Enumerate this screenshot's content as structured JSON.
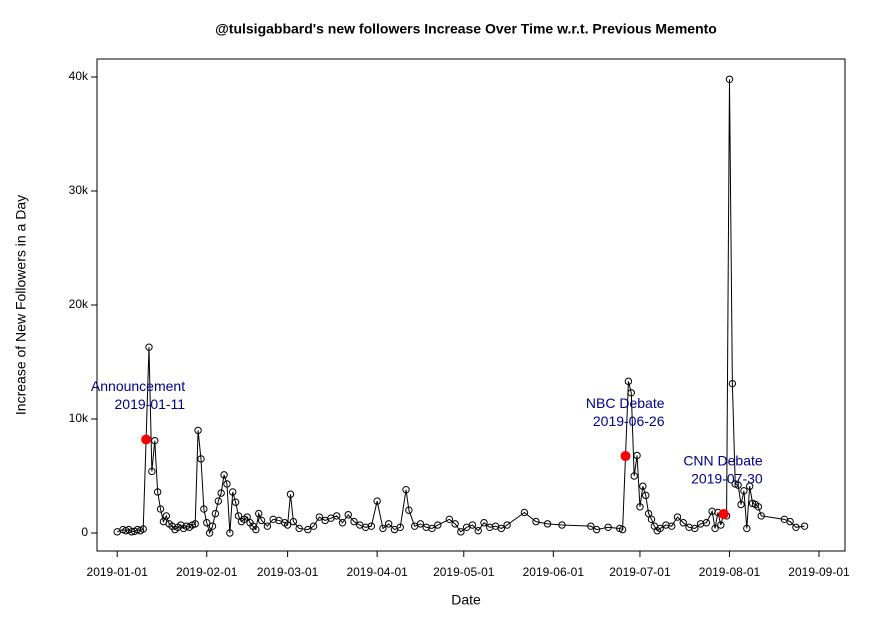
{
  "chart_data": {
    "type": "line",
    "title": "@tulsigabbard's new followers Increase Over Time w.r.t. Previous Memento",
    "xlabel": "Date",
    "ylabel": "Increase of New Followers in a Day",
    "x": [
      "2019-01-01",
      "2019-01-03",
      "2019-01-04",
      "2019-01-05",
      "2019-01-06",
      "2019-01-07",
      "2019-01-08",
      "2019-01-09",
      "2019-01-10",
      "2019-01-11",
      "2019-01-12",
      "2019-01-13",
      "2019-01-14",
      "2019-01-15",
      "2019-01-16",
      "2019-01-17",
      "2019-01-18",
      "2019-01-19",
      "2019-01-20",
      "2019-01-21",
      "2019-01-22",
      "2019-01-23",
      "2019-01-24",
      "2019-01-25",
      "2019-01-26",
      "2019-01-27",
      "2019-01-28",
      "2019-01-29",
      "2019-01-30",
      "2019-01-31",
      "2019-02-01",
      "2019-02-02",
      "2019-02-03",
      "2019-02-04",
      "2019-02-05",
      "2019-02-06",
      "2019-02-07",
      "2019-02-08",
      "2019-02-09",
      "2019-02-10",
      "2019-02-11",
      "2019-02-12",
      "2019-02-13",
      "2019-02-14",
      "2019-02-15",
      "2019-02-16",
      "2019-02-17",
      "2019-02-18",
      "2019-02-19",
      "2019-02-20",
      "2019-02-22",
      "2019-02-24",
      "2019-02-26",
      "2019-02-28",
      "2019-03-01",
      "2019-03-02",
      "2019-03-03",
      "2019-03-05",
      "2019-03-08",
      "2019-03-10",
      "2019-03-12",
      "2019-03-14",
      "2019-03-16",
      "2019-03-18",
      "2019-03-20",
      "2019-03-22",
      "2019-03-24",
      "2019-03-26",
      "2019-03-28",
      "2019-03-30",
      "2019-04-01",
      "2019-04-03",
      "2019-04-05",
      "2019-04-07",
      "2019-04-09",
      "2019-04-11",
      "2019-04-12",
      "2019-04-14",
      "2019-04-16",
      "2019-04-18",
      "2019-04-20",
      "2019-04-22",
      "2019-04-26",
      "2019-04-28",
      "2019-04-30",
      "2019-05-02",
      "2019-05-04",
      "2019-05-06",
      "2019-05-08",
      "2019-05-10",
      "2019-05-12",
      "2019-05-14",
      "2019-05-16",
      "2019-05-22",
      "2019-05-26",
      "2019-05-30",
      "2019-06-04",
      "2019-06-14",
      "2019-06-16",
      "2019-06-20",
      "2019-06-24",
      "2019-06-25",
      "2019-06-26",
      "2019-06-27",
      "2019-06-28",
      "2019-06-29",
      "2019-06-30",
      "2019-07-01",
      "2019-07-02",
      "2019-07-03",
      "2019-07-04",
      "2019-07-05",
      "2019-07-06",
      "2019-07-07",
      "2019-07-08",
      "2019-07-10",
      "2019-07-12",
      "2019-07-14",
      "2019-07-16",
      "2019-07-18",
      "2019-07-20",
      "2019-07-22",
      "2019-07-24",
      "2019-07-26",
      "2019-07-27",
      "2019-07-28",
      "2019-07-29",
      "2019-07-30",
      "2019-07-31",
      "2019-08-01",
      "2019-08-02",
      "2019-08-03",
      "2019-08-04",
      "2019-08-05",
      "2019-08-06",
      "2019-08-07",
      "2019-08-08",
      "2019-08-09",
      "2019-08-10",
      "2019-08-11",
      "2019-08-12",
      "2019-08-20",
      "2019-08-22",
      "2019-08-24",
      "2019-08-27"
    ],
    "series": [
      {
        "color": "#000000",
        "values": [
          100,
          300,
          200,
          300,
          100,
          150,
          300,
          200,
          350,
          8200,
          16300,
          5400,
          8100,
          3600,
          2100,
          1000,
          1500,
          800,
          600,
          300,
          500,
          700,
          400,
          600,
          500,
          700,
          800,
          9000,
          6500,
          2100,
          900,
          0,
          600,
          1700,
          2800,
          3500,
          5100,
          4300,
          0,
          3600,
          2700,
          1500,
          1000,
          1200,
          1400,
          900,
          600,
          300,
          1700,
          1100,
          600,
          1200,
          1100,
          900,
          700,
          3400,
          1000,
          400,
          300,
          600,
          1400,
          1100,
          1300,
          1500,
          900,
          1600,
          1000,
          700,
          500,
          600,
          2800,
          400,
          800,
          300,
          500,
          3800,
          2000,
          600,
          800,
          500,
          400,
          700,
          1200,
          800,
          100,
          500,
          700,
          200,
          900,
          500,
          600,
          400,
          700,
          1800,
          1000,
          800,
          700,
          600,
          300,
          500,
          400,
          300,
          6750,
          13300,
          12300,
          5000,
          6800,
          2300,
          4100,
          3300,
          1700,
          1200,
          600,
          200,
          400,
          700,
          600,
          1400,
          900,
          500,
          400,
          800,
          900,
          1900,
          400,
          1800,
          700,
          1670,
          1500,
          39800,
          13100,
          4300,
          4200,
          2500,
          3700,
          400,
          4100,
          2600,
          2500,
          2300,
          1500,
          1200,
          1000,
          500,
          600
        ]
      }
    ],
    "annotations": [
      {
        "text": "Announcement",
        "x": "2019-01-11",
        "y": 8200
      },
      {
        "text": "NBC Debate",
        "x": "2019-06-26",
        "y": 6750
      },
      {
        "text": "CNN Debate",
        "x": "2019-07-30",
        "y": 1670
      }
    ],
    "annotation_color": "#ff0000",
    "annotation_text_color": "#00008b",
    "xlim": [
      "2018-12-25",
      "2019-09-10"
    ],
    "xticks": [
      "2019-01-01",
      "2019-02-01",
      "2019-03-01",
      "2019-04-01",
      "2019-05-01",
      "2019-06-01",
      "2019-07-01",
      "2019-08-01",
      "2019-09-01"
    ],
    "ylim": [
      -1579,
      41579
    ],
    "yticks": [
      0,
      {
        "value": 10000,
        "label": "10k"
      },
      {
        "value": 20000,
        "label": "20k"
      },
      {
        "value": 30000,
        "label": "30k"
      },
      {
        "value": 40000,
        "label": "40k"
      }
    ]
  }
}
